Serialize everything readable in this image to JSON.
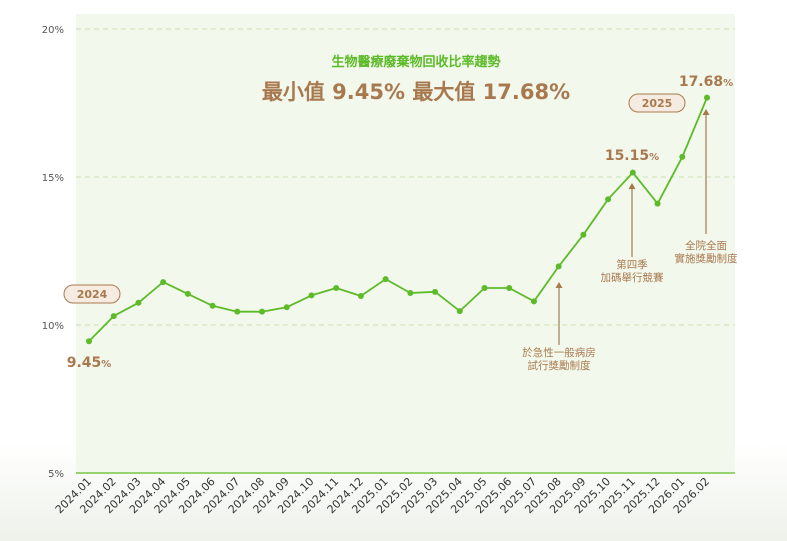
{
  "chart_data": {
    "type": "line",
    "title": "生物醫療廢棄物回收比率趨勢",
    "subtitle": "最小值 9.45% 最大值 17.68%",
    "x": [
      "2024.01",
      "2024.02",
      "2024.03",
      "2024.04",
      "2024.05",
      "2024.06",
      "2024.07",
      "2024.08",
      "2024.09",
      "2024.10",
      "2024.11",
      "2024.12",
      "2025.01",
      "2025.02",
      "2025.03",
      "2025.04",
      "2025.05",
      "2025.06",
      "2025.07",
      "2025.08",
      "2025.09",
      "2025.10",
      "2025.11",
      "2025.12",
      "2026.01",
      "2026.02"
    ],
    "series": [
      {
        "values": [
          9.45,
          10.3,
          10.75,
          11.45,
          11.05,
          10.65,
          10.45,
          10.45,
          10.6,
          11.0,
          11.25,
          10.98,
          11.55,
          11.08,
          11.12,
          10.47,
          11.25,
          11.25,
          10.8,
          11.98,
          13.05,
          14.25,
          15.15,
          14.1,
          15.68,
          17.68
        ],
        "color": "#5dbb2a"
      }
    ],
    "y_ticks": [
      "5%",
      "10%",
      "15%",
      "20%"
    ],
    "ylim": [
      5,
      20
    ],
    "grid": true,
    "value_labels": [
      {
        "index": 0,
        "value": "9.45",
        "unit": "%"
      },
      {
        "index": 22,
        "value": "15.15",
        "unit": "%"
      },
      {
        "index": 25,
        "value": "17.68",
        "unit": "%"
      }
    ],
    "badges": [
      "2024",
      "2025"
    ],
    "annotations": [
      {
        "index": 19,
        "lines": [
          "於急性一般病房",
          "試行獎勵制度"
        ]
      },
      {
        "index": 22,
        "lines": [
          "第四季",
          "加碼舉行競賽"
        ]
      },
      {
        "index": 25,
        "lines": [
          "全院全面",
          "實施獎勵制度"
        ]
      }
    ],
    "colors": {
      "line": "#5dbb2a",
      "accent": "#a8794f",
      "plot_bg": "#f3f8ec",
      "badge_bg": "#f6ebe0"
    }
  }
}
